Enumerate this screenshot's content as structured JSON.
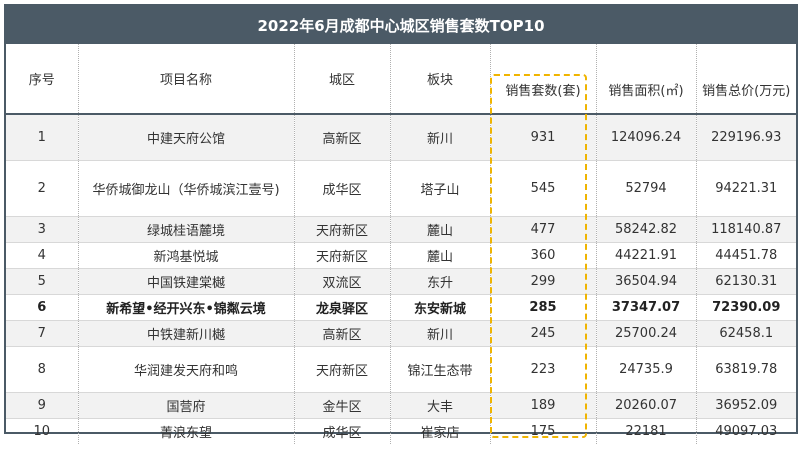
{
  "title": "2022年6月成都中心城区销售套数TOP10",
  "columns": [
    "序号",
    "项目名称",
    "城区",
    "板块",
    "销售套数(套)",
    "销售面积(㎡)",
    "销售总价(万元)"
  ],
  "rows": [
    [
      "1",
      "中建天府公馆",
      "高新区",
      "新川",
      "931",
      "124096.24",
      "229196.93"
    ],
    [
      "2",
      "华侨城御龙山（华侨城滨江壹号)",
      "成华区",
      "塔子山",
      "545",
      "52794",
      "94221.31"
    ],
    [
      "3",
      "绿城桂语麓境",
      "天府新区",
      "麓山",
      "477",
      "58242.82",
      "118140.87"
    ],
    [
      "4",
      "新鸿基悦城",
      "天府新区",
      "麓山",
      "360",
      "44221.91",
      "44451.78"
    ],
    [
      "5",
      "中国铁建棠樾",
      "双流区",
      "东升",
      "299",
      "36504.94",
      "62130.31"
    ],
    [
      "6",
      "新希望•经开兴东•锦粼云境",
      "龙泉驿区",
      "东安新城",
      "285",
      "37347.07",
      "72390.09"
    ],
    [
      "7",
      "中铁建新川樾",
      "高新区",
      "新川",
      "245",
      "25700.24",
      "62458.1"
    ],
    [
      "8",
      "华润建发天府和鸣",
      "天府新区",
      "锦江生态带",
      "223",
      "24735.9",
      "63819.78"
    ],
    [
      "9",
      "国营府",
      "金牛区",
      "大丰",
      "189",
      "20260.07",
      "36952.09"
    ],
    [
      "10",
      "菁浪东望",
      "成华区",
      "崔家店",
      "175",
      "22181",
      "49097.03"
    ]
  ],
  "highlighted_row_index": 5,
  "highlighted_column": "销售套数(套)",
  "colors": {
    "header_bar": "#4b5a66",
    "highlight_border": "#f0b400",
    "row_shade": "#f2f2f2"
  }
}
